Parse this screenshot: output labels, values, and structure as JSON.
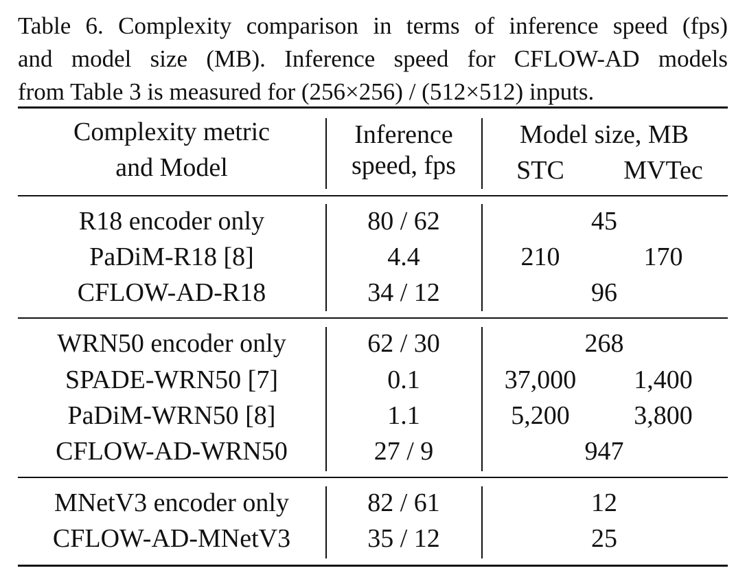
{
  "caption": {
    "lines": [
      "Table 6. Complexity comparison in terms of inference speed (fps)",
      "and model size (MB). Inference speed for CFLOW-AD models",
      "from Table 3 is measured for (256×256) / (512×512) inputs."
    ]
  },
  "table": {
    "header": {
      "col1_line1": "Complexity metric",
      "col1_line2": "and Model",
      "col2_line1": "Inference",
      "col2_line2": "speed, fps",
      "col3_line1": "Model size, MB",
      "col3_sub_stc": "STC",
      "col3_sub_mvtec": "MVTec"
    },
    "groups": [
      {
        "rows": [
          {
            "model": "R18 encoder only",
            "speed": "80 / 62",
            "size": "45"
          },
          {
            "model": "PaDiM-R18 [8]",
            "speed": "4.4",
            "stc": "210",
            "mvtec": "170"
          },
          {
            "model": "CFLOW-AD-R18",
            "speed": "34 / 12",
            "size": "96"
          }
        ]
      },
      {
        "rows": [
          {
            "model": "WRN50 encoder only",
            "speed": "62 / 30",
            "size": "268"
          },
          {
            "model": "SPADE-WRN50 [7]",
            "speed": "0.1",
            "stc": "37,000",
            "mvtec": "1,400"
          },
          {
            "model": "PaDiM-WRN50 [8]",
            "speed": "1.1",
            "stc": "5,200",
            "mvtec": "3,800"
          },
          {
            "model": "CFLOW-AD-WRN50",
            "speed": "27 / 9",
            "size": "947"
          }
        ]
      },
      {
        "rows": [
          {
            "model": "MNetV3 encoder only",
            "speed": "82 / 61",
            "size": "12"
          },
          {
            "model": "CFLOW-AD-MNetV3",
            "speed": "35 / 12",
            "size": "25"
          }
        ]
      }
    ]
  }
}
